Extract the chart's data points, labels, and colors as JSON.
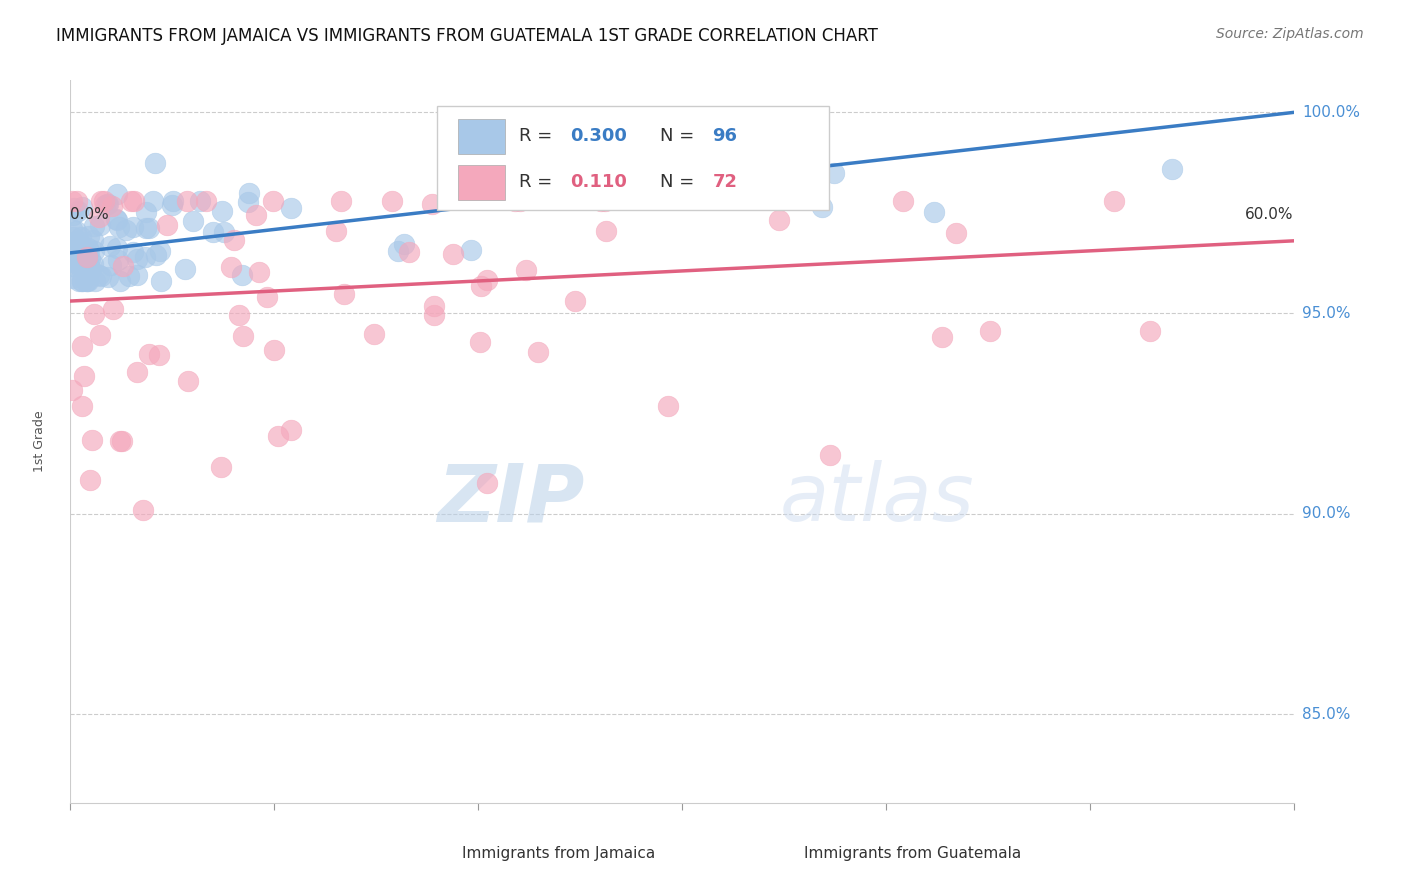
{
  "title": "IMMIGRANTS FROM JAMAICA VS IMMIGRANTS FROM GUATEMALA 1ST GRADE CORRELATION CHART",
  "source": "Source: ZipAtlas.com",
  "ylabel": "1st Grade",
  "xlim": [
    0.0,
    0.6
  ],
  "ylim": [
    0.828,
    1.008
  ],
  "yticks": [
    0.85,
    0.9,
    0.95,
    1.0
  ],
  "ytick_labels": [
    "85.0%",
    "90.0%",
    "95.0%",
    "100.0%"
  ],
  "xtick_labels": [
    "0.0%",
    "",
    "",
    "",
    "",
    "",
    "60.0%"
  ],
  "r_jamaica": 0.3,
  "n_jamaica": 96,
  "r_guatemala": 0.11,
  "n_guatemala": 72,
  "color_jamaica": "#a8c8e8",
  "color_guatemala": "#f4a8bc",
  "line_color_jamaica": "#3a7cc4",
  "line_color_guatemala": "#e06080",
  "watermark_zip": "ZIP",
  "watermark_atlas": "atlas",
  "background_color": "#ffffff",
  "seed": 42
}
